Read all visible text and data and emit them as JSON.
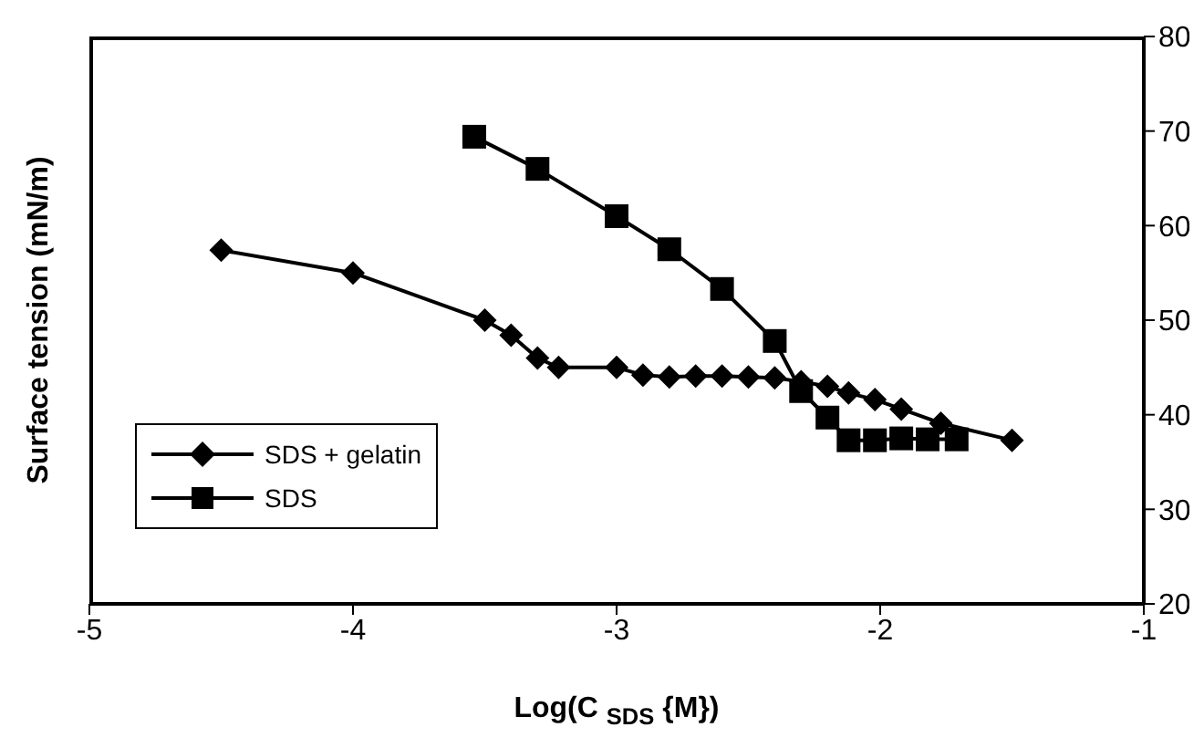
{
  "chart_data": {
    "type": "line",
    "xlabel": "Log(C $_{SDS}$ {M})",
    "ylabel": "Surface tension (mN/m)",
    "series": [
      {
        "name": "SDS + gelatin",
        "color": "#000000",
        "marker": "diamond",
        "x": [
          -4.5,
          -4.0,
          -3.5,
          -3.4,
          -3.3,
          -3.22,
          -3.0,
          -2.9,
          -2.8,
          -2.7,
          -2.6,
          -2.5,
          -2.4,
          -2.3,
          -2.2,
          -2.12,
          -2.02,
          -1.92,
          -1.77,
          -1.5
        ],
        "values": [
          57.4,
          55,
          50,
          48.4,
          46,
          45,
          45,
          44.2,
          44,
          44.1,
          44.1,
          44,
          43.9,
          43.5,
          43,
          42.3,
          41.6,
          40.6,
          39.1,
          37.3
        ]
      },
      {
        "name": "SDS",
        "color": "#000000",
        "marker": "square",
        "x": [
          -3.54,
          -3.3,
          -3.0,
          -2.8,
          -2.6,
          -2.4,
          -2.3,
          -2.2,
          -2.12,
          -2.02,
          -1.92,
          -1.82,
          -1.71
        ],
        "values": [
          69.4,
          66,
          61,
          57.5,
          53.3,
          47.8,
          42.5,
          39.7,
          37.3,
          37.3,
          37.5,
          37.4,
          37.4
        ]
      }
    ],
    "xlim": [
      -5,
      -1
    ],
    "xticks": [
      -5,
      -4,
      -3,
      -2,
      -1
    ],
    "ylim": [
      20,
      80
    ],
    "yticks": [
      20,
      30,
      40,
      50,
      60,
      70,
      80
    ],
    "grid": false,
    "legend": "bottom left",
    "line_style": "solid"
  }
}
